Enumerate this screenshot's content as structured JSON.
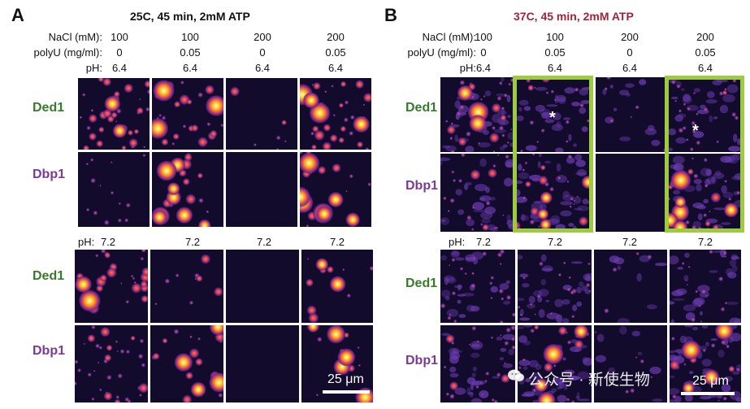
{
  "panels": [
    {
      "id": "A",
      "letter": "A",
      "title": "25C, 45 min, 2mM ATP",
      "title_color": "#111111",
      "labels": {
        "nacl": "NaCl (mM):",
        "polyu": "polyU (mg/ml):",
        "ph": "pH:"
      },
      "nacl": [
        "100",
        "100",
        "200",
        "200"
      ],
      "polyu": [
        "0",
        "0.05",
        "0",
        "0.05"
      ],
      "ph_top": [
        "6.4",
        "6.4",
        "6.4",
        "6.4"
      ],
      "ph_bottom": [
        "7.2",
        "7.2",
        "7.2",
        "7.2"
      ],
      "row_labels": [
        "Ded1",
        "Dbp1",
        "Ded1",
        "Dbp1"
      ],
      "scalebar": "25 μm"
    },
    {
      "id": "B",
      "letter": "B",
      "title": "37C, 45 min, 2mM ATP",
      "title_color": "#a0243b",
      "labels": {
        "nacl": "NaCl (mM):",
        "polyu": "polyU (mg/ml):",
        "ph": "pH:"
      },
      "nacl": [
        "100",
        "100",
        "200",
        "200"
      ],
      "polyu": [
        "0",
        "0.05",
        "0",
        "0.05"
      ],
      "ph_top": [
        "6.4",
        "6.4",
        "6.4",
        "6.4"
      ],
      "ph_bottom": [
        "7.2",
        "7.2",
        "7.2",
        "7.2"
      ],
      "row_labels": [
        "Ded1",
        "Dbp1",
        "Ded1",
        "Dbp1"
      ],
      "asterisk": "*",
      "scalebar": "25 μm"
    }
  ],
  "colors": {
    "ded1_label": "#3a7a2c",
    "dbp1_label": "#7b3a96",
    "highlight_box": "#9ccc3c",
    "image_background": "#120b2c"
  },
  "watermark": "公众号 · 新使生物"
}
